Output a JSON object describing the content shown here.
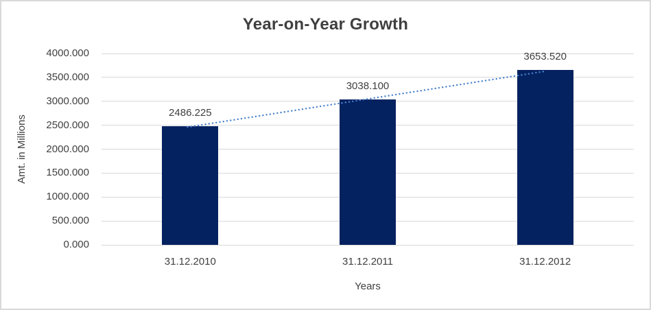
{
  "chart_data": {
    "type": "bar",
    "title": "Year-on-Year Growth",
    "categories": [
      "31.12.2010",
      "31.12.2011",
      "31.12.2012"
    ],
    "values": [
      2486.225,
      3038.1,
      3653.52
    ],
    "value_labels": [
      "2486.225",
      "3038.100",
      "3653.520"
    ],
    "xlabel": "Years",
    "ylabel": "Amt. in Millions",
    "ylim": [
      0,
      4000
    ],
    "y_tick_labels": [
      "0.000",
      "500.000",
      "1000.000",
      "1500.000",
      "2000.000",
      "2500.000",
      "3000.000",
      "3500.000",
      "4000.000"
    ],
    "grid": true,
    "legend_position": "none",
    "trendline": {
      "type": "linear",
      "style": "dotted"
    },
    "colors": {
      "bar": "#042260",
      "trendline": "#4a82cc",
      "gridline": "#d9d9d9",
      "text": "#404040",
      "title_text": "#3f3f3f",
      "frame_border": "#d9d9d9",
      "background": "#ffffff"
    }
  }
}
